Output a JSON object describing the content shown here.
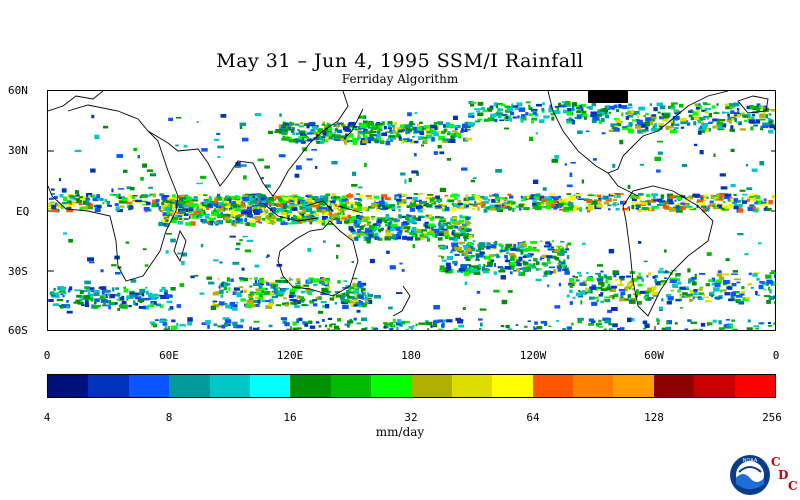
{
  "title": "May 31 – Jun 4, 1995 SSM/I Rainfall",
  "subtitle": "Ferriday Algorithm",
  "lat_labels": [
    "60N",
    "30N",
    "EQ",
    "30S",
    "60S"
  ],
  "lon_labels": [
    "0",
    "60E",
    "120E",
    "180",
    "120W",
    "60W",
    "0"
  ],
  "colorbar": {
    "colors": [
      "#00107a",
      "#0033bb",
      "#0a55ff",
      "#009a9a",
      "#00c8c8",
      "#00ffff",
      "#009000",
      "#00bb00",
      "#00ff00",
      "#b0b000",
      "#dddd00",
      "#ffff00",
      "#ff5500",
      "#ff8000",
      "#ffa000",
      "#900000",
      "#c80000",
      "#ff0000"
    ],
    "ticks": [
      "4",
      "8",
      "16",
      "32",
      "64",
      "128",
      "256"
    ],
    "unit": "mm/day"
  },
  "logo": {
    "text": "NOAA",
    "cdc": [
      "C",
      "D",
      "C"
    ]
  }
}
